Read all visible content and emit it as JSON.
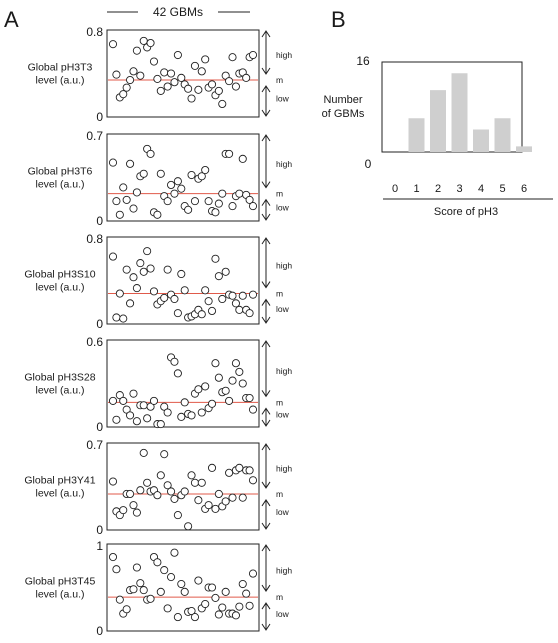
{
  "panels": {
    "a": "A",
    "b": "B"
  },
  "header": {
    "label": "42 GBMs"
  },
  "zones": {
    "high": "high",
    "m": "m",
    "low": "low"
  },
  "chart_data": [
    {
      "type": "scatter",
      "ylabel_line1": "Global pH3T3",
      "ylabel_line2": "level (a.u.)",
      "ymax_label": "0.8",
      "ymin_label": "0",
      "ylim": [
        0,
        0.8
      ],
      "median": 0.34,
      "values": [
        0.67,
        0.39,
        0.18,
        0.21,
        0.27,
        0.34,
        0.42,
        0.61,
        0.38,
        0.7,
        0.64,
        0.68,
        0.51,
        0.35,
        0.24,
        0.41,
        0.28,
        0.4,
        0.32,
        0.57,
        0.36,
        0.3,
        0.26,
        0.17,
        0.47,
        0.25,
        0.42,
        0.53,
        0.27,
        0.3,
        0.2,
        0.24,
        0.12,
        0.38,
        0.33,
        0.55,
        0.28,
        0.4,
        0.41,
        0.36,
        0.55,
        0.57
      ]
    },
    {
      "type": "scatter",
      "ylabel_line1": "Global pH3T6",
      "ylabel_line2": "level (a.u.)",
      "ymax_label": "0.7",
      "ymin_label": "0",
      "ylim": [
        0,
        0.7
      ],
      "median": 0.22,
      "values": [
        0.47,
        0.16,
        0.05,
        0.27,
        0.17,
        0.46,
        0.1,
        0.23,
        0.36,
        0.38,
        0.58,
        0.54,
        0.07,
        0.05,
        0.38,
        0.2,
        0.16,
        0.29,
        0.22,
        0.32,
        0.26,
        0.12,
        0.09,
        0.37,
        0.16,
        0.34,
        0.36,
        0.41,
        0.16,
        0.08,
        0.07,
        0.14,
        0.22,
        0.54,
        0.54,
        0.12,
        0.2,
        0.22,
        0.5,
        0.21,
        0.17,
        0.12
      ]
    },
    {
      "type": "scatter",
      "ylabel_line1": "Global pH3S10",
      "ylabel_line2": "level (a.u.)",
      "ymax_label": "0.8",
      "ymin_label": "0",
      "ylim": [
        0,
        0.8
      ],
      "median": 0.28,
      "values": [
        0.62,
        0.06,
        0.28,
        0.05,
        0.5,
        0.19,
        0.43,
        0.33,
        0.56,
        0.48,
        0.67,
        0.51,
        0.3,
        0.18,
        0.21,
        0.24,
        0.5,
        0.27,
        0.23,
        0.1,
        0.46,
        0.31,
        0.06,
        0.07,
        0.09,
        0.13,
        0.09,
        0.31,
        0.21,
        0.12,
        0.6,
        0.44,
        0.23,
        0.48,
        0.27,
        0.26,
        0.19,
        0.13,
        0.26,
        0.13,
        0.1,
        0.27
      ]
    },
    {
      "type": "scatter",
      "ylabel_line1": "Global pH3S28",
      "ylabel_line2": "level (a.u.)",
      "ymax_label": "0.6",
      "ymin_label": "0",
      "ylim": [
        0,
        0.6
      ],
      "median": 0.17,
      "values": [
        0.18,
        0.05,
        0.22,
        0.18,
        0.12,
        0.08,
        0.23,
        0.04,
        0.15,
        0.15,
        0.06,
        0.14,
        0.18,
        0.02,
        0.02,
        0.14,
        0.1,
        0.48,
        0.45,
        0.37,
        0.07,
        0.17,
        0.09,
        0.08,
        0.23,
        0.26,
        0.1,
        0.28,
        0.13,
        0.16,
        0.44,
        0.34,
        0.24,
        0.25,
        0.18,
        0.32,
        0.44,
        0.38,
        0.3,
        0.2,
        0.2,
        0.12
      ]
    },
    {
      "type": "scatter",
      "ylabel_line1": "Global pH3Y41",
      "ylabel_line2": "level (a.u.)",
      "ymax_label": "0.7",
      "ymin_label": "0",
      "ylim": [
        0,
        0.7
      ],
      "median": 0.29,
      "values": [
        0.39,
        0.15,
        0.12,
        0.16,
        0.29,
        0.29,
        0.2,
        0.14,
        0.32,
        0.62,
        0.38,
        0.31,
        0.32,
        0.28,
        0.44,
        0.61,
        0.36,
        0.31,
        0.25,
        0.12,
        0.28,
        0.31,
        0.03,
        0.44,
        0.38,
        0.24,
        0.38,
        0.17,
        0.2,
        0.5,
        0.17,
        0.29,
        0.19,
        0.23,
        0.46,
        0.26,
        0.48,
        0.5,
        0.26,
        0.48,
        0.48,
        0.4
      ]
    },
    {
      "type": "scatter",
      "ylabel_line1": "Global pH3T45",
      "ylabel_line2": "level (a.u.)",
      "ymax_label": "1",
      "ymin_label": "0",
      "ylim": [
        0,
        1
      ],
      "median": 0.39,
      "values": [
        0.85,
        0.71,
        0.36,
        0.2,
        0.25,
        0.47,
        0.48,
        0.73,
        0.55,
        0.47,
        0.36,
        0.37,
        0.85,
        0.79,
        0.45,
        0.7,
        0.26,
        0.62,
        0.9,
        0.16,
        0.54,
        0.45,
        0.22,
        0.23,
        0.16,
        0.58,
        0.26,
        0.31,
        0.5,
        0.5,
        0.38,
        0.19,
        0.27,
        0.45,
        0.2,
        0.2,
        0.18,
        0.28,
        0.54,
        0.43,
        0.29,
        0.66
      ]
    },
    {
      "type": "bar",
      "categories": [
        "0",
        "1",
        "2",
        "3",
        "4",
        "5",
        "6"
      ],
      "values": [
        0,
        6,
        11,
        14,
        4,
        6,
        1
      ],
      "ymax_label": "16",
      "ymin_label": "0",
      "ylim": [
        0,
        16
      ],
      "ylabel_line1": "Number",
      "ylabel_line2": "of GBMs",
      "xlabel": "Score of pH3"
    }
  ]
}
